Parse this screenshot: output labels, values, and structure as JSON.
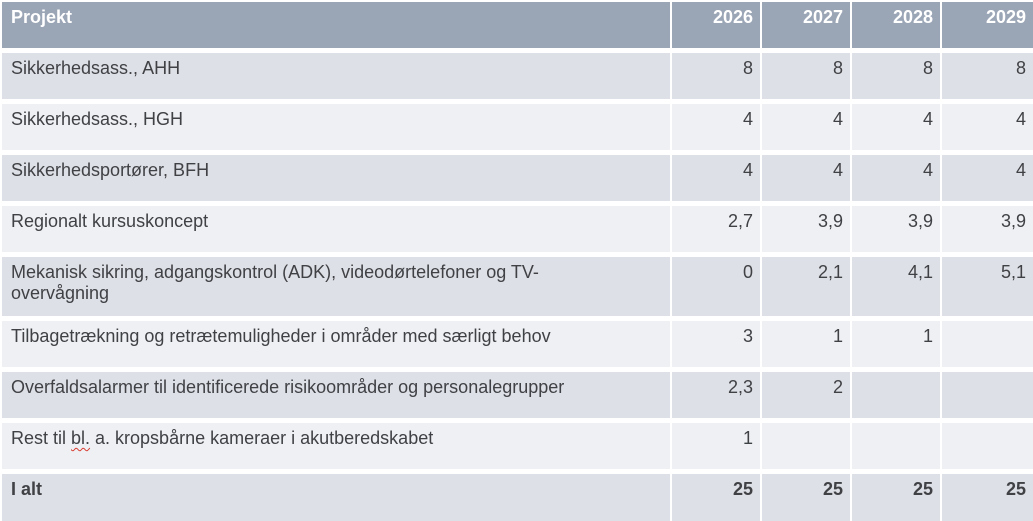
{
  "table": {
    "title_semantic": "Projektbudget-tabel",
    "header": {
      "project": "Projekt",
      "years": [
        "2026",
        "2027",
        "2028",
        "2029"
      ]
    },
    "rows": [
      {
        "project": "Sikkerhedsass., AHH",
        "values": [
          "8",
          "8",
          "8",
          "8"
        ]
      },
      {
        "project": "Sikkerhedsass., HGH",
        "values": [
          "4",
          "4",
          "4",
          "4"
        ]
      },
      {
        "project": "Sikkerhedsportører, BFH",
        "values": [
          "4",
          "4",
          "4",
          "4"
        ]
      },
      {
        "project": "Regionalt kursuskoncept",
        "values": [
          "2,7",
          "3,9",
          "3,9",
          "3,9"
        ]
      },
      {
        "project": "Mekanisk sikring, adgangskontrol (ADK), videodørtelefoner og TV-\novervågning",
        "values": [
          "0",
          "2,1",
          "4,1",
          "5,1"
        ]
      },
      {
        "project": "Tilbagetrækning og retrætemuligheder i områder med særligt behov",
        "values": [
          "3",
          "1",
          "1",
          ""
        ]
      },
      {
        "project": "Overfaldsalarmer til identificerede risikoområder og personalegrupper",
        "values": [
          "2,3",
          "2",
          "",
          ""
        ]
      },
      {
        "project": "Rest til bl. a. kropsbårne kameraer i akutberedskabet",
        "parts": {
          "before": "Rest til ",
          "misspelled": "bl.",
          "after": " a. kropsbårne kameraer i akutberedskabet"
        },
        "values": [
          "1",
          "",
          "",
          ""
        ]
      },
      {
        "project": "I alt",
        "values": [
          "25",
          "25",
          "25",
          "25"
        ]
      }
    ],
    "colors": {
      "header_bg": "#9aa5b6",
      "header_text": "#ffffff",
      "row_dark": "#dee0e7",
      "row_light": "#eef0f3",
      "text": "#3f4145",
      "squiggle": "#d83b2f"
    }
  }
}
